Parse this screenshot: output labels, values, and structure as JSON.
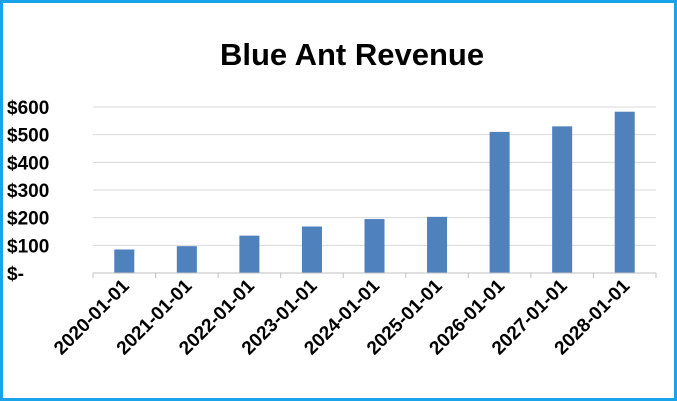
{
  "chart_data": {
    "type": "bar",
    "title": "Blue Ant Revenue",
    "xlabel": "",
    "ylabel": "",
    "categories": [
      "2020-01-01",
      "2021-01-01",
      "2022-01-01",
      "2023-01-01",
      "2024-01-01",
      "2025-01-01",
      "2026-01-01",
      "2027-01-01",
      "2028-01-01"
    ],
    "values": [
      85,
      97,
      135,
      168,
      195,
      203,
      510,
      530,
      583
    ],
    "ylim": [
      0,
      600
    ],
    "yticks": [
      0,
      100,
      200,
      300,
      400,
      500,
      600
    ],
    "ytick_labels": [
      "$-",
      "$100",
      "$200",
      "$300",
      "$400",
      "$500",
      "$600"
    ],
    "grid": true,
    "legend": "none",
    "bar_color": "#4f81bd",
    "frame_color": "#1aa3e8"
  }
}
